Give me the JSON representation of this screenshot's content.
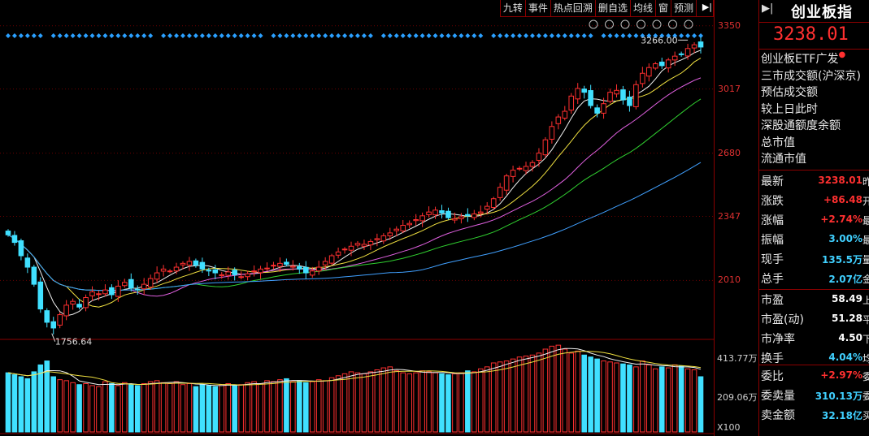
{
  "toolbar": {
    "items": [
      "九转",
      "事件",
      "热点回溯",
      "删自选",
      "均线",
      "窗",
      "预测"
    ]
  },
  "toolbar_icons": [
    "settings-icon",
    "eye-icon",
    "basket-icon",
    "lock-icon",
    "hand-icon",
    "plus-icon",
    "minus-icon"
  ],
  "chart_data": {
    "type": "candlestick",
    "ylim": [
      1700,
      3400
    ],
    "y_ticks": [
      3350,
      3017,
      2680,
      2347,
      2010
    ],
    "annotations": [
      {
        "text": "3266.00",
        "value": 3266
      },
      {
        "text": "1756.64",
        "value": 1756.64
      }
    ],
    "close": [
      2250,
      2210,
      2140,
      2080,
      1990,
      1860,
      1790,
      1760,
      1830,
      1880,
      1900,
      1870,
      1920,
      1950,
      1940,
      1960,
      1935,
      1980,
      2000,
      1970,
      1960,
      1990,
      2020,
      2050,
      2070,
      2060,
      2080,
      2100,
      2110,
      2090,
      2070,
      2060,
      2050,
      2040,
      2055,
      2040,
      2030,
      2045,
      2060,
      2070,
      2075,
      2090,
      2100,
      2095,
      2085,
      2070,
      2050,
      2060,
      2080,
      2110,
      2140,
      2160,
      2175,
      2190,
      2205,
      2200,
      2215,
      2230,
      2245,
      2260,
      2280,
      2300,
      2310,
      2330,
      2350,
      2370,
      2380,
      2365,
      2340,
      2335,
      2345,
      2350,
      2360,
      2370,
      2400,
      2440,
      2500,
      2560,
      2590,
      2600,
      2610,
      2630,
      2680,
      2750,
      2820,
      2870,
      2900,
      2980,
      3020,
      3000,
      2930,
      2890,
      2940,
      3000,
      3010,
      2960,
      2930,
      3040,
      3100,
      3130,
      3150,
      3140,
      3170,
      3190,
      3200,
      3230,
      3250,
      3238
    ],
    "volume": [
      300,
      290,
      280,
      270,
      305,
      340,
      360,
      280,
      265,
      260,
      250,
      240,
      245,
      235,
      230,
      255,
      245,
      235,
      250,
      240,
      235,
      245,
      255,
      260,
      250,
      245,
      255,
      240,
      245,
      230,
      240,
      235,
      230,
      240,
      245,
      235,
      240,
      250,
      255,
      245,
      260,
      255,
      265,
      270,
      255,
      260,
      250,
      255,
      265,
      260,
      275,
      285,
      295,
      305,
      300,
      295,
      305,
      315,
      325,
      330,
      310,
      300,
      295,
      300,
      310,
      305,
      300,
      295,
      290,
      295,
      300,
      310,
      305,
      320,
      330,
      350,
      355,
      360,
      370,
      380,
      385,
      390,
      400,
      420,
      435,
      440,
      420,
      400,
      410,
      390,
      380,
      370,
      360,
      355,
      350,
      345,
      340,
      330,
      360,
      340,
      320,
      330,
      325,
      340,
      335,
      320,
      315,
      280
    ],
    "vol_labels": [
      "413.77万",
      "209.06万",
      "X100"
    ]
  },
  "info": {
    "arrow": "▶|",
    "title": "创业板指",
    "price": "3238.01",
    "plain_rows": [
      "创业板ETF广发",
      "三市成交额(沪深京)",
      "预估成交额",
      "较上日此时",
      "深股通额度余额",
      "总市值",
      "流通市值"
    ],
    "stats": [
      {
        "label": "最新",
        "value": "3238.01",
        "color": "red",
        "cut": "昨"
      },
      {
        "label": "涨跌",
        "value": "+86.48",
        "color": "red",
        "cut": "开"
      },
      {
        "label": "涨幅",
        "value": "+2.74%",
        "color": "red",
        "cut": "最"
      },
      {
        "label": "振幅",
        "value": "3.00%",
        "color": "cyan",
        "cut": "最"
      },
      {
        "label": "现手",
        "value": "135.5万",
        "color": "cyan",
        "cut": "量"
      },
      {
        "label": "总手",
        "value": "2.07亿",
        "color": "cyan",
        "cut": "金"
      }
    ],
    "stats2": [
      {
        "label": "市盈",
        "value": "58.49",
        "color": "white",
        "cut": "上"
      },
      {
        "label": "市盈(动)",
        "value": "51.28",
        "color": "white",
        "cut": "平"
      },
      {
        "label": "市净率",
        "value": "4.50",
        "color": "white",
        "cut": "下"
      },
      {
        "label": "换手",
        "value": "4.04%",
        "color": "cyan",
        "cut": "均"
      }
    ],
    "stats3": [
      {
        "label": "委比",
        "value": "+2.97%",
        "color": "red",
        "cut": "委"
      },
      {
        "label": "委卖量",
        "value": "310.13万",
        "color": "cyan",
        "cut": "委"
      },
      {
        "label": "卖金额",
        "value": "32.18亿",
        "color": "cyan",
        "cut": "买"
      }
    ]
  }
}
